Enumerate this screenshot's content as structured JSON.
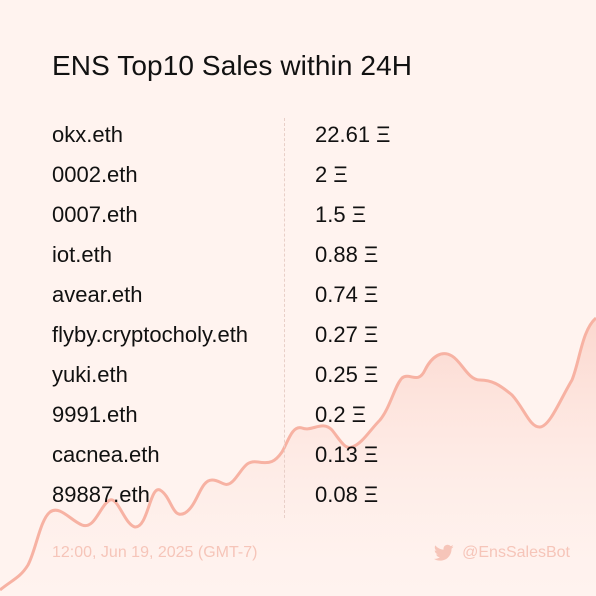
{
  "title": "ENS Top10 Sales within 24H",
  "sales": [
    {
      "name": "okx.eth",
      "price": "22.61 Ξ"
    },
    {
      "name": "0002.eth",
      "price": "2 Ξ"
    },
    {
      "name": "0007.eth",
      "price": "1.5 Ξ"
    },
    {
      "name": "iot.eth",
      "price": "0.88 Ξ"
    },
    {
      "name": "avear.eth",
      "price": "0.74 Ξ"
    },
    {
      "name": "flyby.cryptocholy.eth",
      "price": "0.27 Ξ"
    },
    {
      "name": "yuki.eth",
      "price": "0.25 Ξ"
    },
    {
      "name": "9991.eth",
      "price": "0.2 Ξ"
    },
    {
      "name": "cacnea.eth",
      "price": "0.13 Ξ"
    },
    {
      "name": "89887.eth",
      "price": "0.08 Ξ"
    }
  ],
  "footer": {
    "timestamp": "12:00, Jun 19, 2025 (GMT-7)",
    "handle": "@EnsSalesBot",
    "handle_icon": "twitter-bird-icon"
  },
  "colors": {
    "background": "#fff3ef",
    "trend_line": "#f7b2a3",
    "trend_fill": "#fde0d8",
    "footer_text": "#f6c5b9",
    "text": "#111111"
  }
}
